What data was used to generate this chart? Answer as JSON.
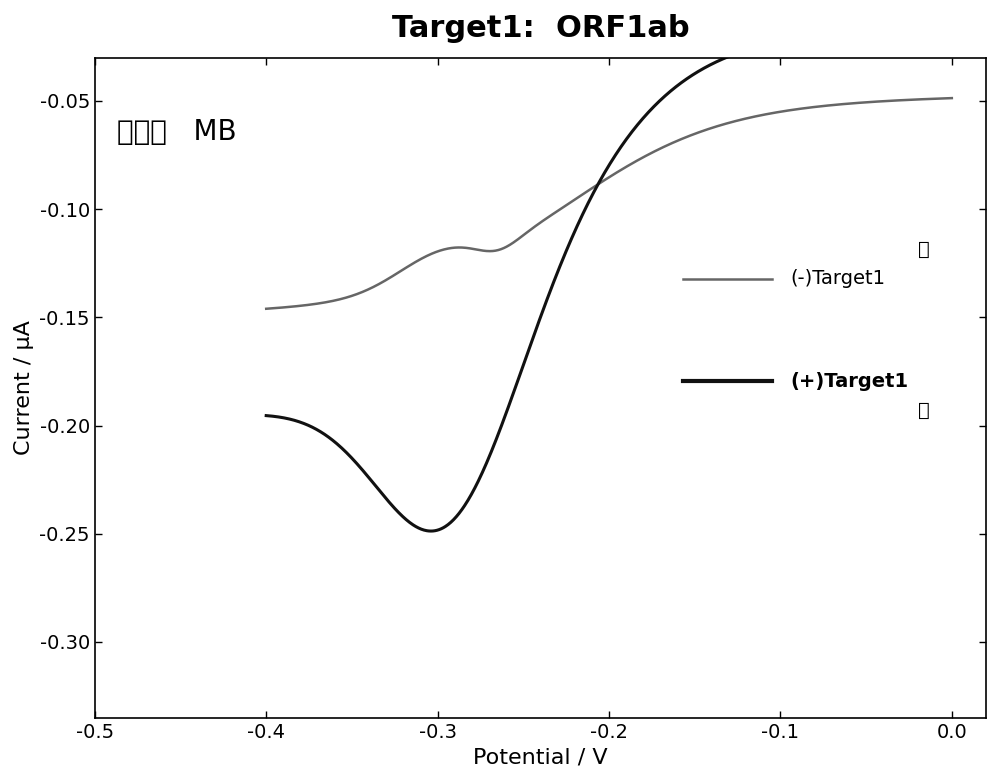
{
  "title": "Target1:  ORF1ab",
  "xlabel": "Potential / V",
  "ylabel": "Current / μA",
  "annotation": "信号：   MB",
  "legend_line1_label": "(-)Target1",
  "legend_line1_prefix": "上",
  "legend_line2_label": "(+)Target1",
  "legend_line2_suffix": "下",
  "xlim": [
    -0.5,
    0.02
  ],
  "ylim": [
    -0.335,
    -0.03
  ],
  "xticks": [
    -0.5,
    -0.4,
    -0.3,
    -0.2,
    -0.1,
    0.0
  ],
  "yticks": [
    -0.3,
    -0.25,
    -0.2,
    -0.15,
    -0.1,
    -0.05
  ],
  "line1_color": "#666666",
  "line2_color": "#111111",
  "title_fontsize": 22,
  "label_fontsize": 16,
  "tick_fontsize": 14,
  "annotation_fontsize": 20,
  "legend_fontsize": 14
}
